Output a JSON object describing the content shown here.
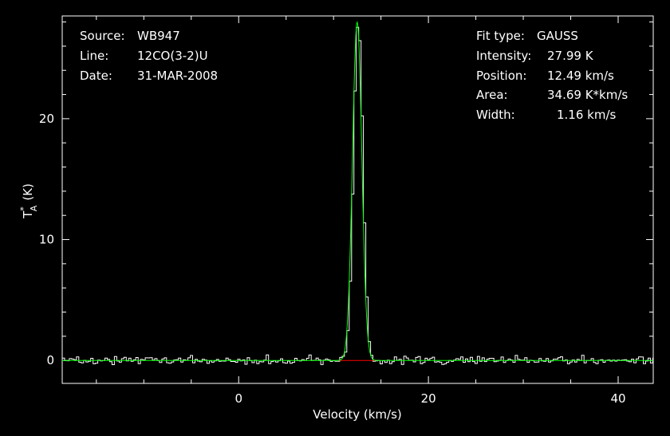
{
  "chart_data": {
    "type": "line",
    "title": "",
    "xlabel": "Velocity (km/s)",
    "ylabel_main": "T",
    "ylabel_sup": "*",
    "ylabel_sub": "A",
    "ylabel_unit": "(K)",
    "xlim": [
      -18.6,
      43.7
    ],
    "ylim": [
      -1.9,
      28.5
    ],
    "xticks": [
      0,
      20,
      40
    ],
    "xtick_labels": [
      "0",
      "20",
      "40"
    ],
    "yticks": [
      0,
      10,
      20
    ],
    "ytick_labels": [
      "0",
      "10",
      "20"
    ],
    "grid": false,
    "legend": "none",
    "colors": {
      "spectrum": "#ffffff",
      "fit": "#00ff00",
      "baseline": "#ff0000",
      "background": "#000000"
    },
    "fit": {
      "type": "gaussian",
      "amplitude": 27.99,
      "center": 12.49,
      "fwhm": 1.16
    },
    "baseline_segment": {
      "x": [
        10.6,
        14.4
      ],
      "y": 0
    },
    "spectrum": {
      "x_start": -18.6,
      "x_end": 43.7,
      "x_step": 0.25,
      "noise_rms": 0.25
    }
  },
  "info_left": [
    {
      "label": "Source:",
      "value": "WB947"
    },
    {
      "label": "Line:",
      "value": "12CO(3-2)U"
    },
    {
      "label": "Date:",
      "value": "31-MAR-2008"
    }
  ],
  "info_right": [
    {
      "label": "Fit type:",
      "value": "GAUSS"
    },
    {
      "label": "Intensity:",
      "value": "27.99 K"
    },
    {
      "label": "Position:",
      "value": "12.49 km/s"
    },
    {
      "label": "Area:",
      "value": "34.69 K*km/s"
    },
    {
      "label": "Width:",
      "value": "1.16 km/s"
    }
  ]
}
